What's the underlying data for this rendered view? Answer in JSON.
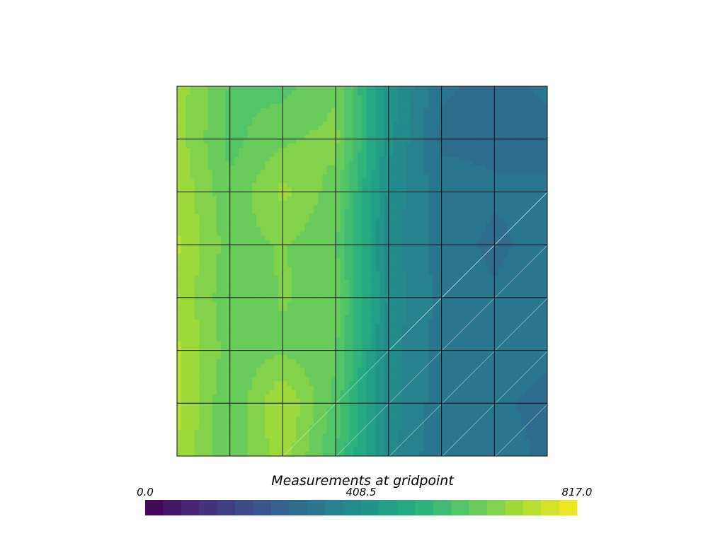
{
  "chart_data": {
    "type": "heatmap",
    "title": "",
    "xlabel": "",
    "ylabel": "",
    "grid": true,
    "colormap": "viridis",
    "colorbar": {
      "title": "Measurements at gridpoint",
      "min": 0.0,
      "max": 817.0,
      "tick_labels": [
        "0.0",
        "408.5",
        "817.0"
      ],
      "tick_values": [
        0.0,
        408.5,
        817.0
      ],
      "n_levels": 24,
      "orientation": "horizontal",
      "placement": "bottom"
    },
    "grid_size": [
      8,
      8
    ],
    "values": [
      [
        700,
        610,
        600,
        640,
        430,
        310,
        300,
        310
      ],
      [
        700,
        600,
        640,
        660,
        420,
        300,
        300,
        300
      ],
      [
        710,
        620,
        690,
        630,
        400,
        320,
        310,
        310
      ],
      [
        720,
        630,
        650,
        620,
        390,
        320,
        300,
        320
      ],
      [
        710,
        620,
        650,
        630,
        400,
        330,
        310,
        320
      ],
      [
        720,
        630,
        640,
        620,
        390,
        320,
        320,
        310
      ],
      [
        730,
        610,
        720,
        600,
        390,
        320,
        310,
        300
      ],
      [
        710,
        620,
        700,
        580,
        390,
        310,
        320,
        300
      ]
    ]
  }
}
